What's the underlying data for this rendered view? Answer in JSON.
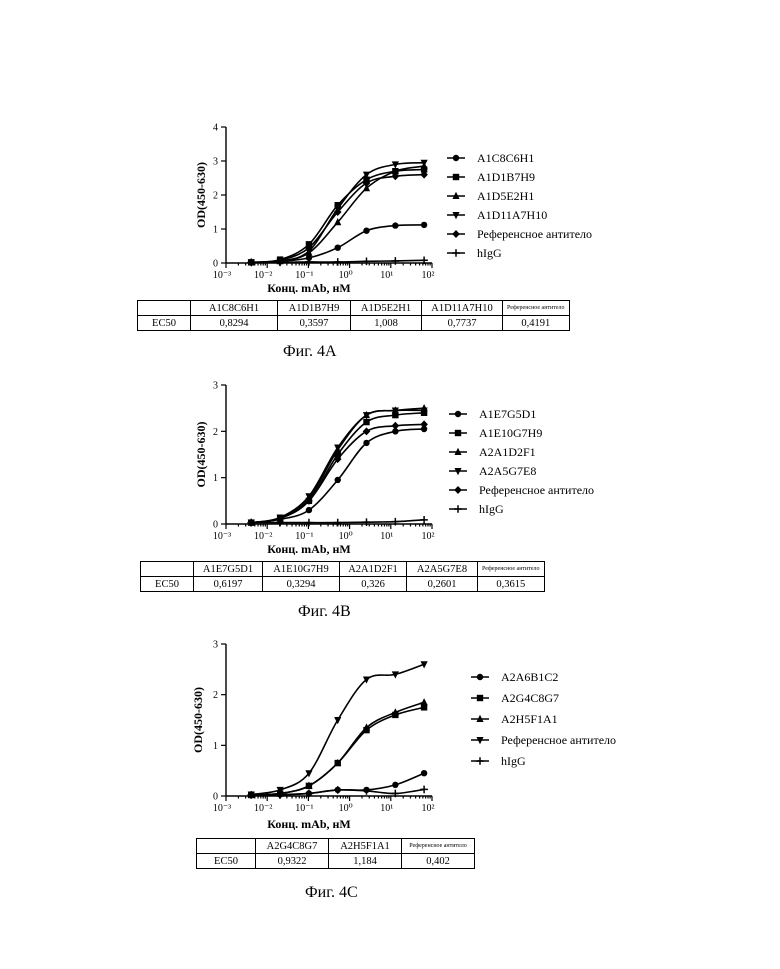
{
  "figures": [
    {
      "caption": "Фиг. 4A",
      "chart_data": {
        "type": "scatter",
        "xscale": "log",
        "xlim": [
          0.001,
          100
        ],
        "ylim": [
          0,
          4
        ],
        "xticks": [
          "10⁻³",
          "10⁻²",
          "10⁻¹",
          "10⁰",
          "10¹",
          "10²"
        ],
        "yticks": [
          "0",
          "1",
          "2",
          "3",
          "4"
        ],
        "xlabel": "Конц. mAb, нМ",
        "ylabel": "OD(450-630)",
        "legend_position": "right",
        "x": [
          0.0041,
          0.0206,
          0.103,
          0.515,
          2.57,
          12.9,
          64.3
        ],
        "series": [
          {
            "name": "A1C8C6H1",
            "marker": "circle",
            "values": [
              0.02,
              0.05,
              0.15,
              0.45,
              0.95,
              1.1,
              1.12
            ]
          },
          {
            "name": "A1D1B7H9",
            "marker": "square",
            "values": [
              0.02,
              0.1,
              0.55,
              1.7,
              2.45,
              2.7,
              2.75
            ]
          },
          {
            "name": "A1D5E2H1",
            "marker": "triangle-up",
            "values": [
              0.02,
              0.05,
              0.3,
              1.2,
              2.2,
              2.7,
              2.85
            ]
          },
          {
            "name": "A1D11A7H10",
            "marker": "triangle-down",
            "values": [
              0.02,
              0.06,
              0.35,
              1.6,
              2.6,
              2.9,
              2.95
            ]
          },
          {
            "name": "Референсное антитело",
            "marker": "diamond",
            "values": [
              0.02,
              0.08,
              0.45,
              1.5,
              2.35,
              2.55,
              2.6
            ]
          },
          {
            "name": "hIgG",
            "marker": "plus",
            "values": [
              0.02,
              0.02,
              0.03,
              0.03,
              0.05,
              0.06,
              0.08
            ]
          }
        ]
      },
      "table": {
        "headers": [
          "",
          "A1C8C6H1",
          "A1D1B7H9",
          "A1D5E2H1",
          "A1D11A7H10",
          "Референсное антитело"
        ],
        "rows": [
          [
            "EC50",
            "0,8294",
            "0,3597",
            "1,008",
            "0,7737",
            "0,4191"
          ]
        ]
      }
    },
    {
      "caption": "Фиг. 4B",
      "chart_data": {
        "type": "scatter",
        "xscale": "log",
        "xlim": [
          0.001,
          100
        ],
        "ylim": [
          0,
          3
        ],
        "xticks": [
          "10⁻³",
          "10⁻²",
          "10⁻¹",
          "10⁰",
          "10¹",
          "10²"
        ],
        "yticks": [
          "0",
          "1",
          "2",
          "3"
        ],
        "xlabel": "Конц. mAb, нМ",
        "ylabel": "OD(450-630)",
        "legend_position": "right",
        "x": [
          0.0041,
          0.0206,
          0.103,
          0.515,
          2.57,
          12.9,
          64.3
        ],
        "series": [
          {
            "name": "A1E7G5D1",
            "marker": "circle",
            "values": [
              0.03,
              0.1,
              0.3,
              0.95,
              1.75,
              2.0,
              2.05
            ]
          },
          {
            "name": "A1E10G7H9",
            "marker": "square",
            "values": [
              0.03,
              0.12,
              0.5,
              1.5,
              2.2,
              2.35,
              2.4
            ]
          },
          {
            "name": "A2A1D2F1",
            "marker": "triangle-up",
            "values": [
              0.03,
              0.12,
              0.55,
              1.6,
              2.35,
              2.45,
              2.5
            ]
          },
          {
            "name": "A2A5G7E8",
            "marker": "triangle-down",
            "values": [
              0.03,
              0.14,
              0.6,
              1.65,
              2.35,
              2.45,
              2.45
            ]
          },
          {
            "name": "Референсное антитело",
            "marker": "diamond",
            "values": [
              0.03,
              0.12,
              0.5,
              1.4,
              2.0,
              2.12,
              2.15
            ]
          },
          {
            "name": "hIgG",
            "marker": "plus",
            "values": [
              0.03,
              0.03,
              0.03,
              0.03,
              0.04,
              0.05,
              0.09
            ]
          }
        ]
      },
      "table": {
        "headers": [
          "",
          "A1E7G5D1",
          "A1E10G7H9",
          "A2A1D2F1",
          "A2A5G7E8",
          "Референсное антитело"
        ],
        "rows": [
          [
            "EC50",
            "0,6197",
            "0,3294",
            "0,326",
            "0,2601",
            "0,3615"
          ]
        ]
      }
    },
    {
      "caption": "Фиг. 4C",
      "chart_data": {
        "type": "scatter",
        "xscale": "log",
        "xlim": [
          0.001,
          100
        ],
        "ylim": [
          0,
          3
        ],
        "xticks": [
          "10⁻³",
          "10⁻²",
          "10⁻¹",
          "10⁰",
          "10¹",
          "10²"
        ],
        "yticks": [
          "0",
          "1",
          "2",
          "3"
        ],
        "xlabel": "Конц. mAb, нМ",
        "ylabel": "OD(450-630)",
        "legend_position": "right",
        "x": [
          0.0041,
          0.0206,
          0.103,
          0.515,
          2.57,
          12.9,
          64.3
        ],
        "series": [
          {
            "name": "A2A6B1C2",
            "marker": "circle",
            "values": [
              0.02,
              0.03,
              0.05,
              0.12,
              0.12,
              0.22,
              0.45
            ]
          },
          {
            "name": "A2G4C8G7",
            "marker": "square",
            "values": [
              0.02,
              0.05,
              0.2,
              0.65,
              1.3,
              1.6,
              1.75
            ]
          },
          {
            "name": "A2H5F1A1",
            "marker": "triangle-up",
            "values": [
              0.02,
              0.05,
              0.2,
              0.65,
              1.35,
              1.65,
              1.85
            ]
          },
          {
            "name": "Референсное антитело",
            "marker": "triangle-down",
            "values": [
              0.03,
              0.12,
              0.45,
              1.5,
              2.3,
              2.4,
              2.6
            ]
          },
          {
            "name": "hIgG",
            "marker": "plus",
            "values": [
              0.02,
              0.02,
              0.05,
              0.12,
              0.1,
              0.05,
              0.13
            ]
          }
        ]
      },
      "table": {
        "headers": [
          "",
          "A2G4C8G7",
          "A2H5F1A1",
          "Референсное антитело"
        ],
        "rows": [
          [
            "EC50",
            "0,9322",
            "1,184",
            "0,402"
          ]
        ]
      }
    }
  ]
}
